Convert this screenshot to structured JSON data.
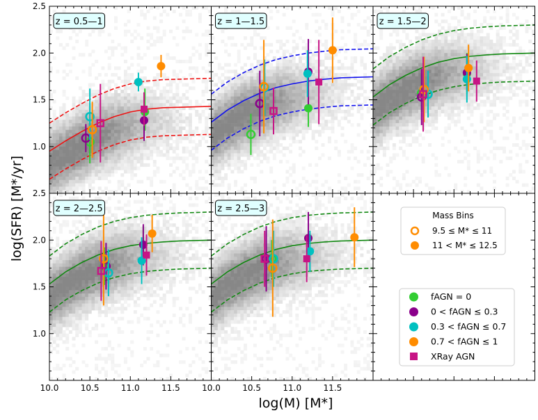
{
  "chart_data": {
    "type": "scatter",
    "xlabel": "log(M)   [M*]",
    "ylabel": "log(SFR)   [M*/yr]",
    "xlim": [
      10.0,
      12.0
    ],
    "ylim": [
      0.5,
      2.5
    ],
    "x_ticks": [
      "10.0",
      "10.5",
      "11.0",
      "11.5"
    ],
    "x_tick_values": [
      10.0,
      10.5,
      11.0,
      11.5
    ],
    "y_ticks": [
      "1.0",
      "1.5",
      "2.0",
      "2.5"
    ],
    "y_tick_values": [
      1.0,
      1.5,
      2.0,
      2.5
    ],
    "colors": {
      "fagn0": "#32cd32",
      "fagn_low": "#8b008b",
      "fagn_mid": "#00c0c0",
      "fagn_high": "#ff8c00",
      "xray": "#c71585",
      "red": "#ee1111",
      "blue": "#1111ee",
      "green": "#118811"
    },
    "panels": [
      {
        "label": "z = 0.5—1",
        "curve_color": "red",
        "curve": {
          "x": [
            10.0,
            10.2,
            10.4,
            10.6,
            10.8,
            11.0,
            11.2,
            11.4,
            11.6,
            11.8,
            12.0
          ],
          "y": [
            0.95,
            1.06,
            1.16,
            1.25,
            1.32,
            1.37,
            1.4,
            1.415,
            1.42,
            1.425,
            1.43
          ]
        },
        "curve_offset": 0.3,
        "points": [
          {
            "x": 10.5,
            "y": 1.05,
            "lo": 0.23,
            "hi": 0.23,
            "cat": "fagn0",
            "open": true,
            "shape": "circle"
          },
          {
            "x": 10.45,
            "y": 1.09,
            "lo": 0.15,
            "hi": 0.15,
            "cat": "fagn_low",
            "open": true,
            "shape": "circle"
          },
          {
            "x": 10.5,
            "y": 1.32,
            "lo": 0.25,
            "hi": 0.3,
            "cat": "fagn_mid",
            "open": true,
            "shape": "circle"
          },
          {
            "x": 10.53,
            "y": 1.18,
            "lo": 0.3,
            "hi": 0.3,
            "cat": "fagn_high",
            "open": true,
            "shape": "circle"
          },
          {
            "x": 10.63,
            "y": 1.25,
            "lo": 0.42,
            "hi": 0.42,
            "cat": "xray",
            "open": true,
            "shape": "square"
          },
          {
            "x": 11.18,
            "y": 1.37,
            "lo": 0.2,
            "hi": 0.25,
            "cat": "fagn0",
            "open": false,
            "shape": "circle"
          },
          {
            "x": 11.17,
            "y": 1.28,
            "lo": 0.22,
            "hi": 0.25,
            "cat": "fagn_low",
            "open": false,
            "shape": "circle"
          },
          {
            "x": 11.1,
            "y": 1.69,
            "lo": 0.1,
            "hi": 0.1,
            "cat": "fagn_mid",
            "open": false,
            "shape": "circle"
          },
          {
            "x": 11.38,
            "y": 1.86,
            "lo": 0.12,
            "hi": 0.12,
            "cat": "fagn_high",
            "open": false,
            "shape": "circle"
          },
          {
            "x": 11.17,
            "y": 1.4,
            "lo": 0.18,
            "hi": 0.18,
            "cat": "xray",
            "open": false,
            "shape": "square"
          }
        ]
      },
      {
        "label": "z = 1—1.5",
        "curve_color": "blue",
        "curve": {
          "x": [
            10.0,
            10.2,
            10.4,
            10.6,
            10.8,
            11.0,
            11.2,
            11.4,
            11.6,
            11.8,
            12.0
          ],
          "y": [
            1.26,
            1.39,
            1.49,
            1.57,
            1.63,
            1.67,
            1.7,
            1.72,
            1.735,
            1.74,
            1.745
          ]
        },
        "curve_offset": 0.3,
        "points": [
          {
            "x": 10.49,
            "y": 1.13,
            "lo": 0.22,
            "hi": 0.22,
            "cat": "fagn0",
            "open": true,
            "shape": "circle"
          },
          {
            "x": 10.6,
            "y": 1.46,
            "lo": 0.35,
            "hi": 0.35,
            "cat": "fagn_low",
            "open": true,
            "shape": "circle"
          },
          {
            "x": 10.66,
            "y": 1.63,
            "lo": 0.3,
            "hi": 0.3,
            "cat": "fagn_mid",
            "open": true,
            "shape": "circle"
          },
          {
            "x": 10.65,
            "y": 1.64,
            "lo": 0.5,
            "hi": 0.5,
            "cat": "fagn_high",
            "open": true,
            "shape": "circle"
          },
          {
            "x": 10.77,
            "y": 1.38,
            "lo": 0.25,
            "hi": 0.25,
            "cat": "xray",
            "open": true,
            "shape": "square"
          },
          {
            "x": 11.2,
            "y": 1.41,
            "lo": 0.2,
            "hi": 0.2,
            "cat": "fagn0",
            "open": false,
            "shape": "circle"
          },
          {
            "x": 11.2,
            "y": 1.8,
            "lo": 0.35,
            "hi": 0.35,
            "cat": "fagn_low",
            "open": false,
            "shape": "circle"
          },
          {
            "x": 11.19,
            "y": 1.78,
            "lo": 0.25,
            "hi": 0.25,
            "cat": "fagn_mid",
            "open": false,
            "shape": "circle"
          },
          {
            "x": 11.5,
            "y": 2.03,
            "lo": 0.35,
            "hi": 0.35,
            "cat": "fagn_high",
            "open": false,
            "shape": "circle"
          },
          {
            "x": 11.33,
            "y": 1.69,
            "lo": 0.45,
            "hi": 0.45,
            "cat": "xray",
            "open": false,
            "shape": "square"
          }
        ]
      },
      {
        "label": "z = 1.5—2",
        "curve_color": "green",
        "curve": {
          "x": [
            10.0,
            10.2,
            10.4,
            10.6,
            10.8,
            11.0,
            11.2,
            11.4,
            11.6,
            11.8,
            12.0
          ],
          "y": [
            1.53,
            1.66,
            1.76,
            1.84,
            1.9,
            1.94,
            1.965,
            1.98,
            1.99,
            1.995,
            2.0
          ]
        },
        "curve_offset": 0.3,
        "points": [
          {
            "x": 10.6,
            "y": 1.57,
            "lo": 0.2,
            "hi": 0.2,
            "cat": "fagn0",
            "open": true,
            "shape": "circle"
          },
          {
            "x": 10.6,
            "y": 1.53,
            "lo": 0.3,
            "hi": 0.3,
            "cat": "fagn_low",
            "open": true,
            "shape": "circle"
          },
          {
            "x": 10.68,
            "y": 1.56,
            "lo": 0.25,
            "hi": 0.25,
            "cat": "fagn_mid",
            "open": true,
            "shape": "circle"
          },
          {
            "x": 10.63,
            "y": 1.61,
            "lo": 0.35,
            "hi": 0.35,
            "cat": "fagn_high",
            "open": true,
            "shape": "circle"
          },
          {
            "x": 10.62,
            "y": 1.56,
            "lo": 0.4,
            "hi": 0.4,
            "cat": "xray",
            "open": true,
            "shape": "square"
          },
          {
            "x": 11.16,
            "y": 1.78,
            "lo": 0.22,
            "hi": 0.22,
            "cat": "fagn0",
            "open": false,
            "shape": "circle"
          },
          {
            "x": 11.16,
            "y": 1.79,
            "lo": 0.2,
            "hi": 0.2,
            "cat": "fagn_low",
            "open": false,
            "shape": "circle"
          },
          {
            "x": 11.16,
            "y": 1.72,
            "lo": 0.25,
            "hi": 0.25,
            "cat": "fagn_mid",
            "open": false,
            "shape": "circle"
          },
          {
            "x": 11.18,
            "y": 1.84,
            "lo": 0.25,
            "hi": 0.25,
            "cat": "fagn_high",
            "open": false,
            "shape": "circle"
          },
          {
            "x": 11.28,
            "y": 1.7,
            "lo": 0.22,
            "hi": 0.22,
            "cat": "xray",
            "open": false,
            "shape": "square"
          }
        ]
      },
      {
        "label": "z = 2—2.5",
        "curve_color": "green",
        "curve": {
          "x": [
            10.0,
            10.2,
            10.4,
            10.6,
            10.8,
            11.0,
            11.2,
            11.4,
            11.6,
            11.8,
            12.0
          ],
          "y": [
            1.53,
            1.66,
            1.76,
            1.84,
            1.9,
            1.94,
            1.965,
            1.98,
            1.99,
            1.995,
            2.0
          ]
        },
        "curve_offset": 0.3,
        "points": [
          {
            "x": 10.68,
            "y": 1.72,
            "lo": 0.2,
            "hi": 0.2,
            "cat": "fagn0",
            "open": true,
            "shape": "circle"
          },
          {
            "x": 10.7,
            "y": 1.72,
            "lo": 0.25,
            "hi": 0.25,
            "cat": "fagn_low",
            "open": true,
            "shape": "circle"
          },
          {
            "x": 10.73,
            "y": 1.65,
            "lo": 0.25,
            "hi": 0.25,
            "cat": "fagn_mid",
            "open": true,
            "shape": "circle"
          },
          {
            "x": 10.67,
            "y": 1.8,
            "lo": 0.5,
            "hi": 0.5,
            "cat": "fagn_high",
            "open": true,
            "shape": "circle"
          },
          {
            "x": 10.64,
            "y": 1.67,
            "lo": 0.32,
            "hi": 0.32,
            "cat": "xray",
            "open": true,
            "shape": "square"
          },
          {
            "x": 11.16,
            "y": 1.95,
            "lo": 0.2,
            "hi": 0.2,
            "cat": "fagn0",
            "open": false,
            "shape": "circle"
          },
          {
            "x": 11.16,
            "y": 1.95,
            "lo": 0.22,
            "hi": 0.22,
            "cat": "fagn_low",
            "open": false,
            "shape": "circle"
          },
          {
            "x": 11.14,
            "y": 1.78,
            "lo": 0.25,
            "hi": 0.25,
            "cat": "fagn_mid",
            "open": false,
            "shape": "circle"
          },
          {
            "x": 11.27,
            "y": 2.07,
            "lo": 0.2,
            "hi": 0.2,
            "cat": "fagn_high",
            "open": false,
            "shape": "circle"
          },
          {
            "x": 11.2,
            "y": 1.84,
            "lo": 0.22,
            "hi": 0.22,
            "cat": "xray",
            "open": false,
            "shape": "square"
          }
        ]
      },
      {
        "label": "z = 2.5—3",
        "curve_color": "green",
        "curve": {
          "x": [
            10.0,
            10.2,
            10.4,
            10.6,
            10.8,
            11.0,
            11.2,
            11.4,
            11.6,
            11.8,
            12.0
          ],
          "y": [
            1.53,
            1.66,
            1.76,
            1.84,
            1.9,
            1.94,
            1.965,
            1.98,
            1.99,
            1.995,
            2.0
          ]
        },
        "curve_offset": 0.3,
        "points": [
          {
            "x": 10.75,
            "y": 1.8,
            "lo": 0.2,
            "hi": 0.2,
            "cat": "fagn0",
            "open": true,
            "shape": "circle"
          },
          {
            "x": 10.68,
            "y": 1.8,
            "lo": 0.35,
            "hi": 0.35,
            "cat": "fagn_low",
            "open": true,
            "shape": "circle"
          },
          {
            "x": 10.77,
            "y": 1.8,
            "lo": 0.3,
            "hi": 0.3,
            "cat": "fagn_mid",
            "open": true,
            "shape": "circle"
          },
          {
            "x": 10.76,
            "y": 1.7,
            "lo": 0.52,
            "hi": 0.52,
            "cat": "fagn_high",
            "open": true,
            "shape": "circle"
          },
          {
            "x": 10.66,
            "y": 1.8,
            "lo": 0.3,
            "hi": 0.3,
            "cat": "xray",
            "open": true,
            "shape": "square"
          },
          {
            "x": 11.2,
            "y": 2.02,
            "lo": 0.25,
            "hi": 0.28,
            "cat": "fagn0",
            "open": false,
            "shape": "circle"
          },
          {
            "x": 11.2,
            "y": 2.02,
            "lo": 0.25,
            "hi": 0.28,
            "cat": "fagn_low",
            "open": false,
            "shape": "circle"
          },
          {
            "x": 11.22,
            "y": 1.88,
            "lo": 0.22,
            "hi": 0.22,
            "cat": "fagn_mid",
            "open": false,
            "shape": "circle"
          },
          {
            "x": 11.77,
            "y": 2.03,
            "lo": 0.32,
            "hi": 0.32,
            "cat": "fagn_high",
            "open": false,
            "shape": "circle"
          },
          {
            "x": 11.18,
            "y": 1.8,
            "lo": 0.25,
            "hi": 0.25,
            "cat": "xray",
            "open": false,
            "shape": "square"
          }
        ]
      }
    ],
    "legend_mass": {
      "title": "Mass Bins",
      "entries": [
        {
          "label": "9.5 ≤ M* ≤ 11",
          "open": true
        },
        {
          "label": "11 < M* ≤ 12.5",
          "open": false
        }
      ]
    },
    "legend_agn": [
      {
        "label": "fAGN = 0",
        "cat": "fagn0",
        "shape": "circle"
      },
      {
        "label": "0 < fAGN ≤ 0.3",
        "cat": "fagn_low",
        "shape": "circle"
      },
      {
        "label": "0.3 < fAGN ≤ 0.7",
        "cat": "fagn_mid",
        "shape": "circle"
      },
      {
        "label": "0.7 < fAGN ≤ 1",
        "cat": "fagn_high",
        "shape": "circle"
      },
      {
        "label": "XRay AGN",
        "cat": "xray",
        "shape": "square"
      }
    ]
  }
}
